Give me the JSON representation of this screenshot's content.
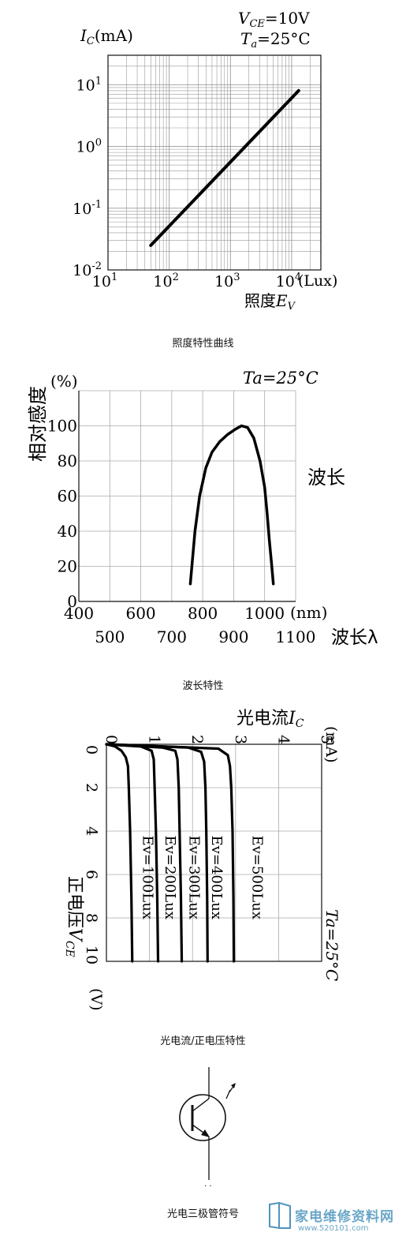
{
  "chart_data": [
    {
      "type": "line",
      "title": "",
      "caption": "照度特性曲线",
      "cond1": "V",
      "cond1_sub": "CE",
      "cond1_val": "=10V",
      "cond2": "T",
      "cond2_sub": "a",
      "cond2_val": "=25°C",
      "ylabel_main": "I",
      "ylabel_sub": "C",
      "ylabel_unit": "(mA)",
      "xlabel_main": "照度",
      "xlabel_var": "E",
      "xlabel_sub": "V",
      "xunit": "(Lux)",
      "xscale": "log",
      "yscale": "log",
      "xlim": [
        10,
        30000
      ],
      "ylim": [
        0.01,
        30
      ],
      "xticks": [
        {
          "base": "10",
          "exp": "1"
        },
        {
          "base": "10",
          "exp": "2"
        },
        {
          "base": "10",
          "exp": "3"
        },
        {
          "base": "10",
          "exp": "4"
        }
      ],
      "yticks": [
        {
          "base": "10",
          "exp": "-2"
        },
        {
          "base": "10",
          "exp": "-1"
        },
        {
          "base": "10",
          "exp": "0"
        },
        {
          "base": "10",
          "exp": "1"
        }
      ],
      "grid": true,
      "series": [
        {
          "x": [
            50,
            13000
          ],
          "y": [
            0.025,
            8
          ]
        }
      ]
    },
    {
      "type": "line",
      "caption": "波长特性",
      "ylabel": "相对感度",
      "yunit": "(%)",
      "cond": "Ta=25°C",
      "side_label": "波长",
      "xlabel": "波长λ",
      "xunit": "(nm)",
      "xlim": [
        400,
        1100
      ],
      "ylim": [
        0,
        120
      ],
      "xticks_top": [
        "400",
        "600",
        "800",
        "1000"
      ],
      "xticks_bottom": [
        "500",
        "700",
        "900",
        "1100"
      ],
      "yticks": [
        "0",
        "20",
        "40",
        "60",
        "80",
        "100"
      ],
      "grid": true,
      "series": [
        {
          "x": [
            760,
            775,
            790,
            810,
            830,
            855,
            880,
            905,
            925,
            945,
            965,
            985,
            1000,
            1008,
            1015,
            1022,
            1028
          ],
          "y": [
            10,
            40,
            60,
            76,
            85,
            91,
            95,
            98,
            100,
            99,
            93,
            80,
            65,
            50,
            35,
            22,
            10
          ]
        }
      ]
    },
    {
      "type": "line",
      "caption": "光电流/正电压特性",
      "xlabel_main": "光电流",
      "xlabel_var": "I",
      "xlabel_sub": "C",
      "xunit": "(mA)",
      "ylabel_main": "正电压",
      "ylabel_var": "V",
      "ylabel_sub": "CE",
      "yunit": "(V)",
      "cond": "Ta=25°C",
      "xlim": [
        0,
        5
      ],
      "ylim": [
        0,
        10
      ],
      "xticks": [
        "0",
        "1",
        "2",
        "3",
        "4",
        "5"
      ],
      "yticks": [
        "0",
        "2",
        "4",
        "6",
        "8",
        "10"
      ],
      "grid": true,
      "series": [
        {
          "name": "Ev=100Lux",
          "x": [
            0.0,
            0.2,
            0.35,
            0.45,
            0.5,
            0.52,
            0.55,
            0.58,
            0.6
          ],
          "v": [
            0,
            0.1,
            0.3,
            0.6,
            1.0,
            2.0,
            4.0,
            7.0,
            10
          ]
        },
        {
          "name": "Ev=200Lux",
          "x": [
            0.0,
            0.8,
            1.05,
            1.1,
            1.12,
            1.15,
            1.18,
            1.2
          ],
          "v": [
            0,
            0.1,
            0.3,
            0.7,
            2.0,
            4.0,
            7.0,
            10
          ]
        },
        {
          "name": "Ev=300Lux",
          "x": [
            0.0,
            1.3,
            1.6,
            1.65,
            1.68,
            1.7,
            1.73,
            1.75
          ],
          "v": [
            0,
            0.15,
            0.3,
            0.7,
            2.0,
            4.0,
            7.0,
            10
          ]
        },
        {
          "name": "Ev=400Lux",
          "x": [
            0.0,
            1.9,
            2.2,
            2.27,
            2.3,
            2.32,
            2.34,
            2.35
          ],
          "v": [
            0,
            0.15,
            0.35,
            0.8,
            2.0,
            4.0,
            7.0,
            10
          ]
        },
        {
          "name": "Ev=500Lux",
          "x": [
            0.0,
            2.6,
            2.82,
            2.87,
            2.9,
            2.93,
            2.95,
            2.96
          ],
          "v": [
            0,
            0.2,
            0.5,
            1.0,
            2.0,
            4.0,
            7.0,
            10
          ]
        }
      ]
    }
  ],
  "symbol_caption": "光电三极管符号",
  "watermark": {
    "text": "家电维修资料网",
    "url": "www.520101.com"
  }
}
